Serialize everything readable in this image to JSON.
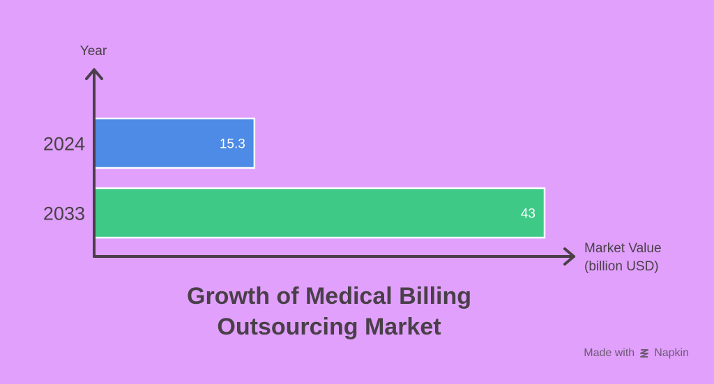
{
  "chart_data": {
    "type": "bar",
    "orientation": "horizontal",
    "categories": [
      "2024",
      "2033"
    ],
    "values": [
      15.3,
      43
    ],
    "value_labels": [
      "15.3",
      "43"
    ],
    "xlabel_lines": [
      "Market Value",
      "(billion USD)"
    ],
    "ylabel": "Year",
    "title_lines": [
      "Growth of Medical Billing",
      "Outsourcing Market"
    ],
    "xlim": [
      0,
      43
    ],
    "grid": false,
    "colors": [
      "#4d8be6",
      "#3fc987"
    ]
  },
  "credit": {
    "prefix": "Made with",
    "brand": "Napkin"
  },
  "colors": {
    "background": "#e0a0fc",
    "axis": "#4a3f48",
    "text": "#4a3f48"
  }
}
